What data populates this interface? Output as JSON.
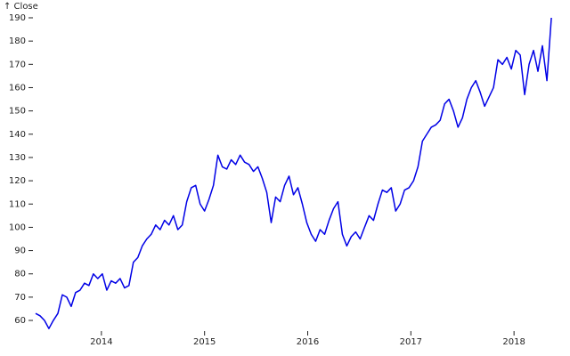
{
  "chart_data": {
    "type": "line",
    "title": "↑ Close",
    "x": [
      2013.362,
      2013.405,
      2013.448,
      2013.491,
      2013.534,
      2013.578,
      2013.621,
      2013.664,
      2013.707,
      2013.75,
      2013.793,
      2013.836,
      2013.879,
      2013.922,
      2013.965,
      2014.009,
      2014.052,
      2014.095,
      2014.138,
      2014.181,
      2014.224,
      2014.267,
      2014.31,
      2014.353,
      2014.396,
      2014.44,
      2014.483,
      2014.526,
      2014.569,
      2014.612,
      2014.655,
      2014.698,
      2014.741,
      2014.784,
      2014.827,
      2014.871,
      2014.914,
      2014.957,
      2015.0,
      2015.043,
      2015.086,
      2015.129,
      2015.172,
      2015.215,
      2015.258,
      2015.302,
      2015.345,
      2015.388,
      2015.431,
      2015.474,
      2015.517,
      2015.56,
      2015.603,
      2015.646,
      2015.689,
      2015.733,
      2015.776,
      2015.819,
      2015.862,
      2015.905,
      2015.948,
      2015.991,
      2016.034,
      2016.077,
      2016.12,
      2016.164,
      2016.207,
      2016.25,
      2016.293,
      2016.336,
      2016.379,
      2016.422,
      2016.465,
      2016.508,
      2016.551,
      2016.595,
      2016.638,
      2016.681,
      2016.724,
      2016.767,
      2016.81,
      2016.853,
      2016.896,
      2016.939,
      2016.982,
      2017.026,
      2017.069,
      2017.112,
      2017.155,
      2017.198,
      2017.241,
      2017.284,
      2017.327,
      2017.37,
      2017.413,
      2017.457,
      2017.5,
      2017.543,
      2017.586,
      2017.629,
      2017.672,
      2017.715,
      2017.758,
      2017.801,
      2017.844,
      2017.888,
      2017.931,
      2017.974,
      2018.017,
      2018.06,
      2018.103,
      2018.146,
      2018.189,
      2018.232,
      2018.275,
      2018.319,
      2018.362
    ],
    "series": [
      {
        "color": "#0000e6",
        "values": [
          63,
          62,
          60,
          56.5,
          60,
          63,
          71,
          70,
          66,
          72,
          73,
          76,
          75,
          80,
          78,
          80,
          73,
          77,
          76,
          78,
          74,
          75,
          85,
          87,
          92,
          95,
          97,
          101,
          99,
          103,
          101,
          105,
          99,
          101,
          111,
          117,
          118,
          110,
          107,
          112,
          118,
          131,
          126,
          125,
          129,
          127,
          131,
          128,
          127,
          124,
          126,
          121,
          115,
          102,
          113,
          111,
          118,
          122,
          114,
          117,
          110,
          102,
          97,
          94,
          99,
          97,
          103,
          108,
          111,
          97,
          92,
          96,
          98,
          95,
          100,
          105,
          103,
          110,
          116,
          115,
          117,
          107,
          110,
          116,
          117,
          120,
          126,
          137,
          140,
          143,
          144,
          146,
          153,
          155,
          150,
          143,
          147,
          155,
          160,
          163,
          158,
          152,
          156,
          160,
          172,
          170,
          173,
          168,
          176,
          174,
          157,
          170,
          176,
          167,
          178,
          163,
          190
        ]
      }
    ],
    "xlim": [
      2013.345,
      2018.37
    ],
    "xticks": [
      2014,
      2015,
      2016,
      2017,
      2018
    ],
    "ylim": [
      56,
      190
    ],
    "yticks": [
      60,
      70,
      80,
      90,
      100,
      110,
      120,
      130,
      140,
      150,
      160,
      170,
      180,
      190
    ],
    "grid": false
  }
}
